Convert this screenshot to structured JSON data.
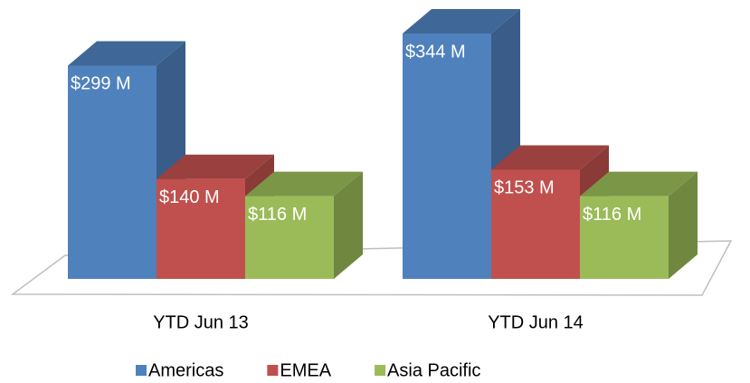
{
  "chart_data": {
    "type": "bar3d",
    "categories": [
      "YTD Jun 13",
      "YTD Jun 14"
    ],
    "series": [
      {
        "name": "Americas",
        "color": "#4f81bd",
        "values": [
          299,
          344
        ],
        "value_labels": [
          "$299 M",
          "$344 M"
        ]
      },
      {
        "name": "EMEA",
        "color": "#c0504d",
        "values": [
          140,
          153
        ],
        "value_labels": [
          "$140 M",
          "$153 M"
        ]
      },
      {
        "name": "Asia Pacific",
        "color": "#9bbb59",
        "values": [
          116,
          116
        ],
        "value_labels": [
          "$116 M",
          "$116 M"
        ]
      }
    ],
    "legend": "bottom"
  }
}
